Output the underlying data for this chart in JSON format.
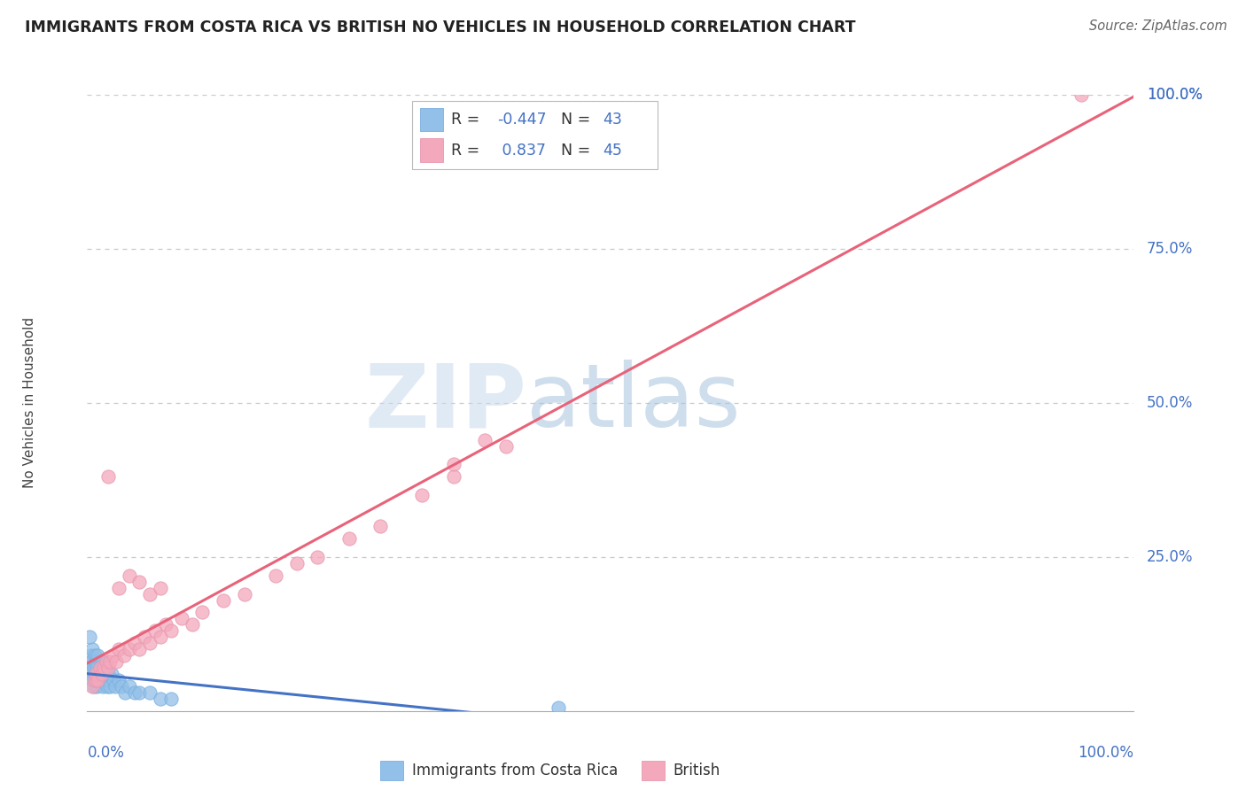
{
  "title": "IMMIGRANTS FROM COSTA RICA VS BRITISH NO VEHICLES IN HOUSEHOLD CORRELATION CHART",
  "source": "Source: ZipAtlas.com",
  "ylabel": "No Vehicles in Household",
  "blue_color": "#92C0E8",
  "pink_color": "#F4A8BB",
  "trendline_blue": "#4472C4",
  "trendline_pink": "#E8637A",
  "watermark_zip_color": "#C8D8EE",
  "watermark_atlas_color": "#A8C4E0",
  "background_color": "#FFFFFF",
  "grid_color": "#C8C8C8",
  "r_n_color": "#4472C4",
  "title_color": "#222222",
  "ylabel_color": "#444444",
  "source_color": "#666666",
  "legend_r1": "-0.447",
  "legend_n1": "43",
  "legend_r2": "0.837",
  "legend_n2": "45",
  "blue_scatter_x": [
    0.002,
    0.003,
    0.003,
    0.004,
    0.005,
    0.005,
    0.006,
    0.006,
    0.007,
    0.007,
    0.008,
    0.008,
    0.009,
    0.009,
    0.01,
    0.01,
    0.011,
    0.012,
    0.013,
    0.014,
    0.015,
    0.015,
    0.016,
    0.017,
    0.018,
    0.019,
    0.02,
    0.021,
    0.022,
    0.023,
    0.025,
    0.027,
    0.03,
    0.033,
    0.036,
    0.04,
    0.045,
    0.05,
    0.06,
    0.07,
    0.08,
    0.45,
    0.002
  ],
  "blue_scatter_y": [
    0.07,
    0.06,
    0.09,
    0.08,
    0.05,
    0.1,
    0.04,
    0.07,
    0.06,
    0.09,
    0.05,
    0.08,
    0.07,
    0.04,
    0.06,
    0.09,
    0.05,
    0.07,
    0.06,
    0.05,
    0.08,
    0.04,
    0.06,
    0.05,
    0.07,
    0.04,
    0.06,
    0.05,
    0.04,
    0.06,
    0.05,
    0.04,
    0.05,
    0.04,
    0.03,
    0.04,
    0.03,
    0.03,
    0.03,
    0.02,
    0.02,
    0.005,
    0.12
  ],
  "pink_scatter_x": [
    0.005,
    0.007,
    0.008,
    0.01,
    0.012,
    0.014,
    0.016,
    0.018,
    0.02,
    0.022,
    0.025,
    0.028,
    0.03,
    0.035,
    0.04,
    0.045,
    0.05,
    0.055,
    0.06,
    0.065,
    0.07,
    0.075,
    0.08,
    0.09,
    0.1,
    0.11,
    0.13,
    0.15,
    0.18,
    0.2,
    0.22,
    0.25,
    0.28,
    0.32,
    0.35,
    0.4,
    0.02,
    0.03,
    0.04,
    0.05,
    0.06,
    0.07,
    0.35,
    0.38,
    0.95
  ],
  "pink_scatter_y": [
    0.04,
    0.05,
    0.06,
    0.05,
    0.07,
    0.06,
    0.07,
    0.08,
    0.07,
    0.08,
    0.09,
    0.08,
    0.1,
    0.09,
    0.1,
    0.11,
    0.1,
    0.12,
    0.11,
    0.13,
    0.12,
    0.14,
    0.13,
    0.15,
    0.14,
    0.16,
    0.18,
    0.19,
    0.22,
    0.24,
    0.25,
    0.28,
    0.3,
    0.35,
    0.38,
    0.43,
    0.38,
    0.2,
    0.22,
    0.21,
    0.19,
    0.2,
    0.4,
    0.44,
    1.0
  ]
}
